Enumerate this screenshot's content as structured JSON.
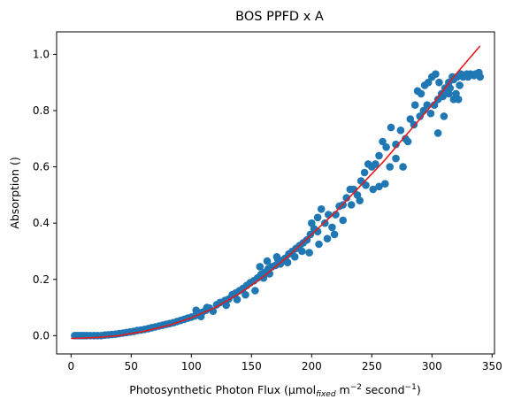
{
  "chart_data": {
    "type": "scatter",
    "title": "BOS PPFD x A",
    "xlabel": {
      "prefix": "Photosynthetic Photon Flux (µmol",
      "subscript": "fixed",
      "middle": " m",
      "sup1": "−2",
      "suffix": " second",
      "sup2": "−1",
      "end": ")"
    },
    "ylabel": "Absorption ()",
    "xlim": [
      -12,
      352
    ],
    "ylim": [
      -0.065,
      1.08
    ],
    "xticks": [
      0,
      50,
      100,
      150,
      200,
      250,
      300,
      350
    ],
    "xtick_labels": [
      "0",
      "50",
      "100",
      "150",
      "200",
      "250",
      "300",
      "350"
    ],
    "yticks": [
      0.0,
      0.2,
      0.4,
      0.6,
      0.8,
      1.0
    ],
    "ytick_labels": [
      "0.0",
      "0.2",
      "0.4",
      "0.6",
      "0.8",
      "1.0"
    ],
    "grid": false,
    "series": [
      {
        "kind": "scatter",
        "color": "#1f77b4",
        "points": [
          [
            3,
            0.0
          ],
          [
            5,
            0.0
          ],
          [
            7,
            0.0
          ],
          [
            9,
            0.0
          ],
          [
            11,
            0.0
          ],
          [
            13,
            0.0
          ],
          [
            16,
            0.0
          ],
          [
            19,
            0.0
          ],
          [
            22,
            0.0
          ],
          [
            25,
            0.0
          ],
          [
            28,
            0.002
          ],
          [
            31,
            0.003
          ],
          [
            34,
            0.004
          ],
          [
            37,
            0.005
          ],
          [
            40,
            0.007
          ],
          [
            43,
            0.009
          ],
          [
            46,
            0.011
          ],
          [
            49,
            0.013
          ],
          [
            52,
            0.015
          ],
          [
            55,
            0.018
          ],
          [
            58,
            0.02
          ],
          [
            61,
            0.022
          ],
          [
            64,
            0.025
          ],
          [
            67,
            0.028
          ],
          [
            70,
            0.031
          ],
          [
            73,
            0.034
          ],
          [
            76,
            0.037
          ],
          [
            79,
            0.04
          ],
          [
            82,
            0.043
          ],
          [
            85,
            0.046
          ],
          [
            88,
            0.05
          ],
          [
            91,
            0.054
          ],
          [
            94,
            0.058
          ],
          [
            97,
            0.062
          ],
          [
            100,
            0.066
          ],
          [
            103,
            0.07
          ],
          [
            106,
            0.077
          ],
          [
            109,
            0.083
          ],
          [
            112,
            0.09
          ],
          [
            115,
            0.098
          ],
          [
            104,
            0.09
          ],
          [
            108,
            0.068
          ],
          [
            113,
            0.1
          ],
          [
            118,
            0.087
          ],
          [
            121,
            0.11
          ],
          [
            124,
            0.118
          ],
          [
            128,
            0.125
          ],
          [
            131,
            0.13
          ],
          [
            134,
            0.145
          ],
          [
            137,
            0.152
          ],
          [
            140,
            0.16
          ],
          [
            143,
            0.168
          ],
          [
            146,
            0.178
          ],
          [
            149,
            0.188
          ],
          [
            152,
            0.195
          ],
          [
            155,
            0.205
          ],
          [
            158,
            0.218
          ],
          [
            161,
            0.225
          ],
          [
            164,
            0.238
          ],
          [
            167,
            0.245
          ],
          [
            129,
            0.108
          ],
          [
            138,
            0.128
          ],
          [
            145,
            0.145
          ],
          [
            153,
            0.16
          ],
          [
            160,
            0.205
          ],
          [
            165,
            0.22
          ],
          [
            170,
            0.25
          ],
          [
            172,
            0.27
          ],
          [
            174,
            0.255
          ],
          [
            176,
            0.268
          ],
          [
            178,
            0.275
          ],
          [
            181,
            0.29
          ],
          [
            184,
            0.3
          ],
          [
            187,
            0.31
          ],
          [
            190,
            0.32
          ],
          [
            193,
            0.33
          ],
          [
            196,
            0.34
          ],
          [
            199,
            0.36
          ],
          [
            202,
            0.38
          ],
          [
            205,
            0.37
          ],
          [
            157,
            0.245
          ],
          [
            163,
            0.265
          ],
          [
            171,
            0.28
          ],
          [
            180,
            0.26
          ],
          [
            186,
            0.28
          ],
          [
            192,
            0.3
          ],
          [
            198,
            0.295
          ],
          [
            206,
            0.325
          ],
          [
            213,
            0.345
          ],
          [
            219,
            0.36
          ],
          [
            200,
            0.4
          ],
          [
            205,
            0.42
          ],
          [
            208,
            0.45
          ],
          [
            211,
            0.4
          ],
          [
            214,
            0.43
          ],
          [
            217,
            0.385
          ],
          [
            220,
            0.43
          ],
          [
            223,
            0.46
          ],
          [
            226,
            0.465
          ],
          [
            229,
            0.49
          ],
          [
            232,
            0.52
          ],
          [
            235,
            0.52
          ],
          [
            238,
            0.5
          ],
          [
            241,
            0.55
          ],
          [
            244,
            0.58
          ],
          [
            247,
            0.61
          ],
          [
            250,
            0.6
          ],
          [
            253,
            0.61
          ],
          [
            256,
            0.64
          ],
          [
            259,
            0.69
          ],
          [
            226,
            0.41
          ],
          [
            233,
            0.465
          ],
          [
            240,
            0.48
          ],
          [
            245,
            0.535
          ],
          [
            251,
            0.52
          ],
          [
            256,
            0.53
          ],
          [
            261,
            0.54
          ],
          [
            265,
            0.6
          ],
          [
            270,
            0.63
          ],
          [
            276,
            0.6
          ],
          [
            262,
            0.67
          ],
          [
            266,
            0.74
          ],
          [
            270,
            0.68
          ],
          [
            274,
            0.73
          ],
          [
            278,
            0.7
          ],
          [
            282,
            0.77
          ],
          [
            286,
            0.82
          ],
          [
            288,
            0.87
          ],
          [
            291,
            0.86
          ],
          [
            294,
            0.89
          ],
          [
            297,
            0.9
          ],
          [
            300,
            0.92
          ],
          [
            303,
            0.93
          ],
          [
            306,
            0.9
          ],
          [
            309,
            0.85
          ],
          [
            312,
            0.87
          ],
          [
            315,
            0.88
          ],
          [
            318,
            0.91
          ],
          [
            321,
            0.92
          ],
          [
            324,
            0.93
          ],
          [
            280,
            0.69
          ],
          [
            285,
            0.75
          ],
          [
            290,
            0.78
          ],
          [
            293,
            0.8
          ],
          [
            296,
            0.82
          ],
          [
            299,
            0.79
          ],
          [
            302,
            0.82
          ],
          [
            305,
            0.84
          ],
          [
            308,
            0.86
          ],
          [
            311,
            0.88
          ],
          [
            314,
            0.9
          ],
          [
            317,
            0.92
          ],
          [
            320,
            0.86
          ],
          [
            323,
            0.89
          ],
          [
            326,
            0.92
          ],
          [
            329,
            0.93
          ],
          [
            332,
            0.93
          ],
          [
            335,
            0.925
          ],
          [
            338,
            0.93
          ],
          [
            340,
            0.92
          ],
          [
            305,
            0.72
          ],
          [
            310,
            0.78
          ],
          [
            314,
            0.86
          ],
          [
            318,
            0.84
          ],
          [
            322,
            0.84
          ],
          [
            330,
            0.92
          ],
          [
            336,
            0.93
          ],
          [
            339,
            0.935
          ]
        ]
      },
      {
        "kind": "line",
        "color": "#e41a1c",
        "x": [
          0,
          20,
          40,
          60,
          80,
          100,
          120,
          140,
          160,
          180,
          200,
          220,
          240,
          260,
          280,
          300,
          320,
          340
        ],
        "y": [
          -0.01,
          -0.007,
          0.0,
          0.015,
          0.035,
          0.063,
          0.1,
          0.15,
          0.21,
          0.28,
          0.36,
          0.44,
          0.53,
          0.62,
          0.72,
          0.82,
          0.93,
          1.03
        ]
      }
    ]
  }
}
